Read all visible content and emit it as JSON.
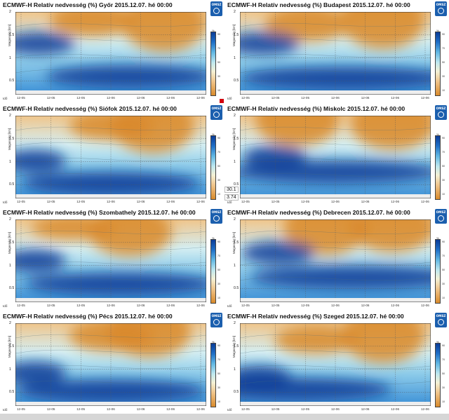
{
  "chart_data": [
    {
      "type": "heatmap",
      "title": "ECMWF-H Relatív nedvesség (%) Győr 2015.12.07. hé 00:00",
      "ylabel": "Magasság [km]",
      "xlabel": "Idő",
      "ylim": [
        0.2,
        2
      ],
      "yticks": [
        "2",
        "1.5",
        "1",
        "0.5"
      ],
      "xticks": [
        "12-05",
        "12-05",
        "12-05",
        "12-06",
        "12-06",
        "12-06",
        "12-06"
      ],
      "colorbar": [
        "90",
        "70",
        "50",
        "30",
        "10"
      ],
      "colorbar_unit": "%",
      "dry": [
        [
          0.78,
          0.85,
          0.95
        ],
        [
          0.4,
          0.9,
          0.55
        ]
      ],
      "moist": [
        [
          0.6,
          0.22,
          0.8
        ],
        [
          0.12,
          0.62,
          0.35
        ]
      ]
    },
    {
      "type": "heatmap",
      "title": "ECMWF-H Relatív nedvesség (%) Budapest 2015.12.07. hé 00:00",
      "ylabel": "Magasság [km]",
      "xlabel": "Idő",
      "ylim": [
        0.2,
        2
      ],
      "yticks": [
        "2",
        "1.5",
        "1",
        "0.5"
      ],
      "xticks": [
        "12-05",
        "12-05",
        "12-05",
        "12-06",
        "12-06",
        "12-06",
        "12-06"
      ],
      "colorbar": [
        "90",
        "70",
        "50",
        "30",
        "10"
      ],
      "colorbar_unit": "%",
      "dry": [
        [
          0.75,
          0.9,
          1.0
        ],
        [
          0.35,
          0.85,
          0.6
        ]
      ],
      "moist": [
        [
          0.55,
          0.2,
          1.0
        ],
        [
          0.12,
          0.62,
          0.35
        ]
      ]
    },
    {
      "type": "heatmap",
      "title": "ECMWF-H Relatív nedvesség (%) Siófok 2015.12.07. hé 00:00",
      "ylabel": "Magasság [km]",
      "xlabel": "Idő",
      "ylim": [
        0.2,
        2
      ],
      "yticks": [
        "2",
        "1.5",
        "1",
        "0.5"
      ],
      "xticks": [
        "12-05",
        "12-05",
        "12-05",
        "12-06",
        "12-06",
        "12-06",
        "12-06"
      ],
      "colorbar": [
        "90",
        "70",
        "50",
        "30",
        "10"
      ],
      "colorbar_unit": "%",
      "dry": [
        [
          0.72,
          0.88,
          0.95
        ],
        [
          0.5,
          0.88,
          0.5
        ]
      ],
      "moist": [
        [
          0.5,
          0.18,
          0.85
        ],
        [
          0.1,
          0.45,
          0.3
        ]
      ]
    },
    {
      "type": "heatmap",
      "title": "ECMWF-H Relatív nedvesség (%) Miskolc 2015.12.07. hé 00:00",
      "ylabel": "Magasság [km]",
      "xlabel": "Idő",
      "ylim": [
        0.2,
        2
      ],
      "yticks": [
        "2",
        "1.5",
        "1",
        "0.5"
      ],
      "xticks": [
        "12-05",
        "12-05",
        "12-05",
        "12-06",
        "12-06",
        "12-06",
        "12-06"
      ],
      "colorbar": [
        "90",
        "70",
        "50",
        "30",
        "10"
      ],
      "colorbar_unit": "%",
      "dry": [
        [
          0.3,
          0.95,
          0.9
        ],
        [
          0.8,
          0.9,
          0.9
        ]
      ],
      "moist": [
        [
          0.5,
          0.32,
          1.0
        ],
        [
          0.18,
          0.5,
          0.3
        ]
      ],
      "values_shown": [
        "30.1",
        "3.74"
      ]
    },
    {
      "type": "heatmap",
      "title": "ECMWF-H Relatív nedvesség (%) Szombathely 2015.12.07. hé 00:00",
      "ylabel": "Magasság [km]",
      "xlabel": "Idő",
      "ylim": [
        0.2,
        2
      ],
      "yticks": [
        "2",
        "1.5",
        "1",
        "0.5"
      ],
      "xticks": [
        "12-05",
        "12-05",
        "12-05",
        "12-06",
        "12-06",
        "12-06",
        "12-06"
      ],
      "colorbar": [
        "90",
        "70",
        "50",
        "30",
        "10"
      ],
      "colorbar_unit": "%",
      "dry": [
        [
          0.6,
          0.85,
          0.85
        ],
        [
          0.3,
          0.9,
          0.4
        ]
      ],
      "moist": [
        [
          0.55,
          0.22,
          0.9
        ],
        [
          0.1,
          0.5,
          0.3
        ]
      ]
    },
    {
      "type": "heatmap",
      "title": "ECMWF-H Relatív nedvesség (%) Debrecen 2015.12.07. hé 00:00",
      "ylabel": "Magasság [km]",
      "xlabel": "Idő",
      "ylim": [
        0.2,
        2
      ],
      "yticks": [
        "2",
        "1.5",
        "1",
        "0.5"
      ],
      "xticks": [
        "12-05",
        "12-05",
        "12-05",
        "12-06",
        "12-06",
        "12-06",
        "12-06"
      ],
      "colorbar": [
        "90",
        "70",
        "50",
        "30",
        "10"
      ],
      "colorbar_unit": "%",
      "dry": [
        [
          0.45,
          0.9,
          0.95
        ],
        [
          0.8,
          0.9,
          0.85
        ]
      ],
      "moist": [
        [
          0.6,
          0.3,
          1.0
        ],
        [
          0.2,
          0.6,
          0.35
        ]
      ]
    },
    {
      "type": "heatmap",
      "title": "ECMWF-H Relatív nedvesség (%) Pécs 2015.12.07. hé 00:00",
      "ylabel": "Magasság [km]",
      "xlabel": "Idő",
      "ylim": [
        0.2,
        2
      ],
      "yticks": [
        "2",
        "1.5",
        "1",
        "0.5"
      ],
      "xticks": [
        "12-05",
        "12-05",
        "12-05",
        "12-06",
        "12-06",
        "12-06",
        "12-06"
      ],
      "colorbar": [
        "90",
        "70",
        "50",
        "30",
        "10"
      ],
      "colorbar_unit": "%",
      "dry": [
        [
          0.7,
          0.9,
          0.9
        ],
        [
          0.5,
          0.85,
          0.55
        ]
      ],
      "moist": [
        [
          0.5,
          0.18,
          0.9
        ],
        [
          0.1,
          0.4,
          0.3
        ]
      ]
    },
    {
      "type": "heatmap",
      "title": "ECMWF-H Relatív nedvesség (%) Szeged 2015.12.07. hé 00:00",
      "ylabel": "Magasság [km]",
      "xlabel": "Idő",
      "ylim": [
        0.2,
        2
      ],
      "yticks": [
        "2",
        "1.5",
        "1",
        "0.5"
      ],
      "xticks": [
        "12-05",
        "12-05",
        "12-05",
        "12-06",
        "12-06",
        "12-06",
        "12-06"
      ],
      "colorbar": [
        "90",
        "70",
        "50",
        "30",
        "10"
      ],
      "colorbar_unit": "%",
      "dry": [
        [
          0.75,
          0.85,
          0.95
        ],
        [
          0.4,
          0.8,
          0.5
        ]
      ],
      "moist": [
        [
          0.3,
          0.2,
          0.9
        ],
        [
          0.1,
          0.35,
          0.3
        ]
      ]
    }
  ],
  "logo_text": "OMSZ",
  "colors": {
    "dry": "#d98a2b",
    "mid": "#bfe8ef",
    "moist": "#0a3c97",
    "accent": "#d2000f"
  }
}
